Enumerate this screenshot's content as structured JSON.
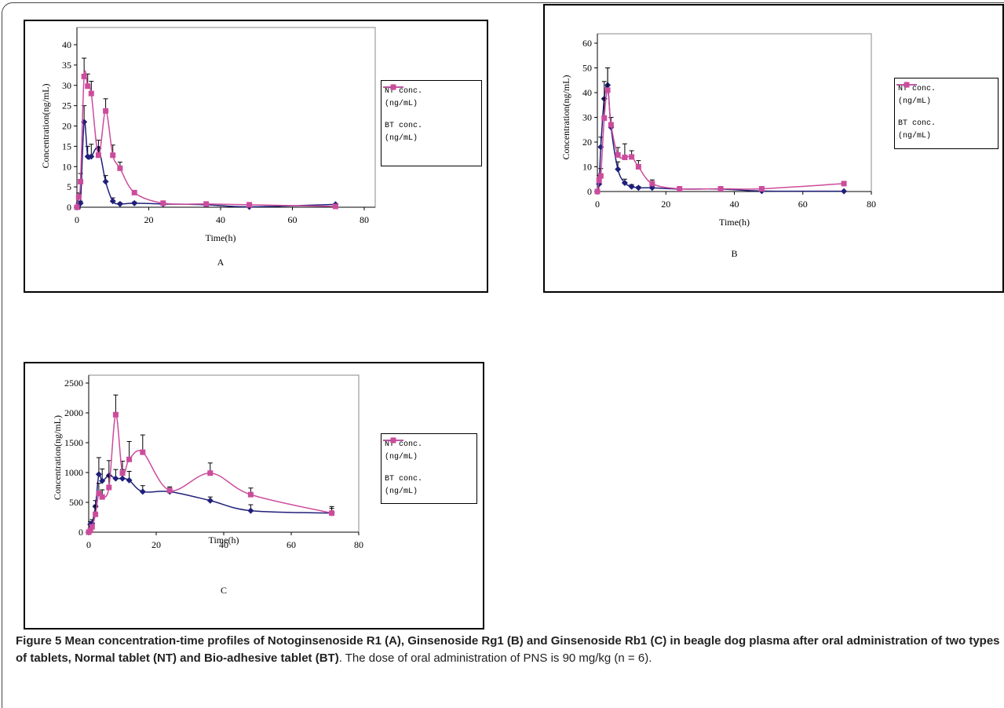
{
  "chart_data": [
    {
      "type": "line",
      "title": "A",
      "x_label": "Time(h)",
      "y_label": "Concentration(ng/mL)",
      "x": [
        0,
        0.5,
        1,
        2,
        3,
        4,
        6,
        8,
        10,
        12,
        16,
        24,
        36,
        48,
        72
      ],
      "xlim": [
        0,
        80
      ],
      "xticks": [
        0,
        20,
        40,
        60,
        80
      ],
      "ylim": [
        0,
        40
      ],
      "yticks": [
        0,
        5,
        10,
        15,
        20,
        25,
        30,
        35,
        40
      ],
      "series": [
        {
          "name": "NT conc.(ng/mL)",
          "color": "#1f1f7a",
          "marker": "diamond",
          "values": [
            0,
            1,
            1,
            21,
            12.5,
            12.5,
            14.5,
            6.3,
            1.5,
            0.8,
            1,
            0.8,
            0.6,
            0.1,
            0.7
          ],
          "errors": [
            0,
            0.5,
            0.5,
            4,
            2.5,
            3,
            2,
            1.5,
            0.8,
            0.3,
            0.3,
            0.3,
            0.3,
            0.1,
            0.2
          ]
        },
        {
          "name": "BT conc.(ng/mL)",
          "color": "#cc4c9c",
          "marker": "square",
          "values": [
            0,
            2.5,
            6.3,
            32.2,
            29.8,
            28,
            12.8,
            23.7,
            12.8,
            9.6,
            3.6,
            1,
            0.8,
            0.6,
            0.2
          ],
          "errors": [
            0,
            1,
            2,
            4.5,
            3,
            3,
            2,
            3,
            2.5,
            1.5,
            0.5,
            0.3,
            0.3,
            0.2,
            0.1
          ]
        }
      ]
    },
    {
      "type": "line",
      "title": "B",
      "x_label": "Time(h)",
      "y_label": "Concentration(ng/mL)",
      "x": [
        0,
        0.5,
        1,
        2,
        3,
        4,
        6,
        8,
        10,
        12,
        16,
        24,
        36,
        48,
        72
      ],
      "xlim": [
        0,
        80
      ],
      "xticks": [
        0,
        20,
        40,
        60,
        80
      ],
      "ylim": [
        0,
        60
      ],
      "yticks": [
        0,
        10,
        20,
        30,
        40,
        50,
        60
      ],
      "series": [
        {
          "name": "NT conc.(ng/mL)",
          "color": "#1f1f7a",
          "marker": "diamond",
          "values": [
            0,
            3,
            18,
            37.5,
            43,
            26,
            9,
            3.5,
            2,
            1.5,
            1.5,
            1,
            1,
            0.2,
            0.1
          ],
          "errors": [
            0,
            1,
            4,
            7,
            7,
            4,
            3,
            1.5,
            0.8,
            0.5,
            0.5,
            0.3,
            0.3,
            0.1,
            0.1
          ]
        },
        {
          "name": "BT conc.(ng/mL)",
          "color": "#cc4c9c",
          "marker": "square",
          "values": [
            0,
            4.5,
            6.3,
            29.7,
            41,
            27,
            14.8,
            13.8,
            14,
            10,
            3.2,
            1.1,
            1.1,
            1.1,
            3.2
          ],
          "errors": [
            0,
            2,
            3,
            8,
            9,
            3,
            3,
            5.5,
            2.5,
            2.5,
            1.5,
            0.3,
            0.3,
            0.3,
            0.3
          ]
        }
      ]
    },
    {
      "type": "line",
      "title": "C",
      "x_label": "Time(h)",
      "y_label": "Concentration(ng/mL)",
      "x": [
        0,
        0.5,
        1,
        2,
        3,
        4,
        6,
        8,
        10,
        12,
        16,
        24,
        36,
        48,
        72
      ],
      "xlim": [
        0,
        80
      ],
      "xticks": [
        0,
        20,
        40,
        60,
        80
      ],
      "ylim": [
        0,
        2500
      ],
      "yticks": [
        0,
        500,
        1000,
        1500,
        2000,
        2500
      ],
      "series": [
        {
          "name": "NT conc.(ng/mL)",
          "color": "#1f1f7a",
          "marker": "diamond",
          "values": [
            0,
            130,
            150,
            430,
            970,
            860,
            950,
            900,
            900,
            870,
            680,
            680,
            530,
            360,
            320
          ],
          "errors": [
            0,
            50,
            60,
            100,
            280,
            200,
            250,
            150,
            150,
            150,
            100,
            60,
            60,
            100,
            80
          ]
        },
        {
          "name": "BT conc.(ng/mL)",
          "color": "#cc4c9c",
          "marker": "square",
          "values": [
            0,
            30,
            90,
            300,
            650,
            590,
            750,
            1970,
            990,
            1220,
            1340,
            700,
            990,
            630,
            320
          ],
          "errors": [
            0,
            20,
            30,
            150,
            170,
            120,
            200,
            330,
            200,
            300,
            290,
            60,
            170,
            110,
            110
          ]
        }
      ]
    }
  ],
  "caption": {
    "label": "Figure 5",
    "title": "Mean concentration-time profiles of Notoginsenoside R1 (A), Ginsenoside Rg1 (B) and Ginsenoside Rb1 (C) in beagle dog plasma after oral administration of two types of tablets, Normal tablet (NT) and Bio-adhesive tablet (BT)",
    "text": ". The dose of oral administration of PNS is 90 mg/kg (n = 6)."
  }
}
